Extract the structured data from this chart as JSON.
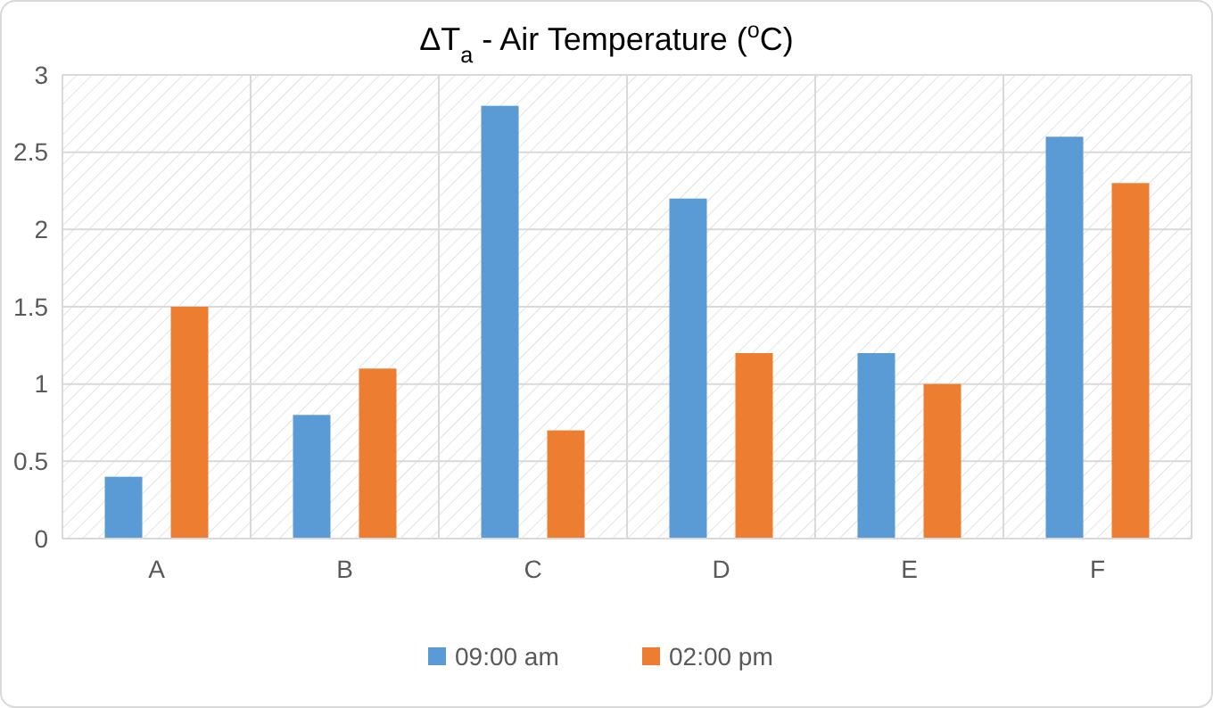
{
  "chart_data": {
    "type": "bar",
    "title": "ΔT$_{a}$ - Air Temperature  ($^{o}$C)",
    "categories": [
      "A",
      "B",
      "C",
      "D",
      "E",
      "F"
    ],
    "series": [
      {
        "name": "09:00 am",
        "color": "#5b9bd5",
        "values": [
          0.4,
          0.8,
          2.8,
          2.2,
          1.2,
          2.6
        ]
      },
      {
        "name": "02:00 pm",
        "color": "#ed7d31",
        "values": [
          1.5,
          1.1,
          0.7,
          1.2,
          1.0,
          2.3
        ]
      }
    ],
    "ylim": [
      0,
      3
    ],
    "yticks": [
      0,
      0.5,
      1,
      1.5,
      2,
      2.5,
      3
    ],
    "grid": true,
    "legend": "bottom"
  }
}
